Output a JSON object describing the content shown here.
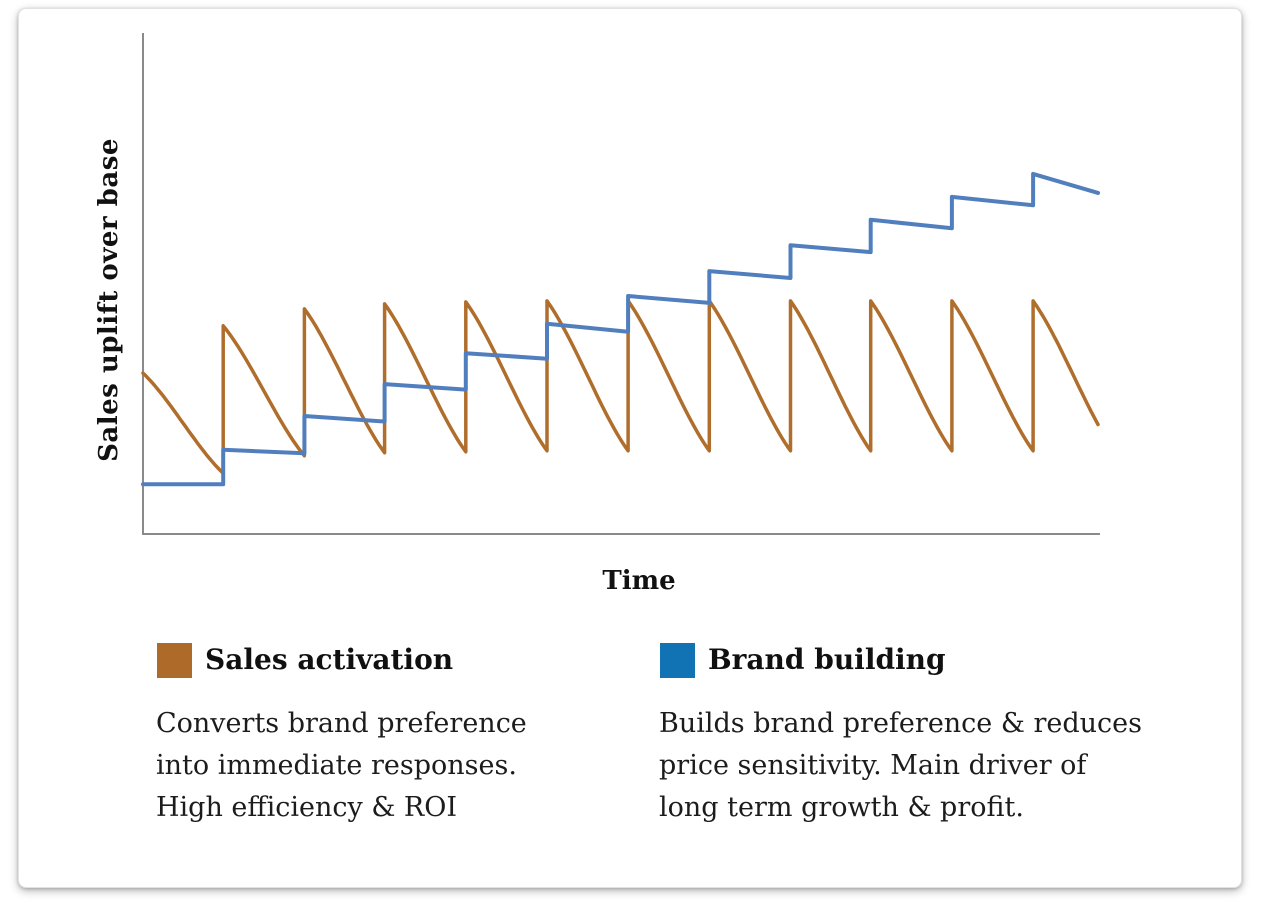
{
  "chart": {
    "axis_color": "#8a8a8a",
    "plot_background": "#ffffff"
  },
  "chart_data": {
    "type": "line",
    "title": "",
    "xlabel": "Time",
    "ylabel": "Sales uplift over base",
    "x_range": [
      0,
      100
    ],
    "y_range": [
      0,
      100
    ],
    "grid": false,
    "axis_tick_labels": "none",
    "legend_position": "below-chart",
    "series": [
      {
        "name": "Sales activation",
        "color": "#B06E2C",
        "pattern": "repeated-burst-sawtooth",
        "start_point": [
          0,
          32.3
        ],
        "burst_times": [
          8.4,
          16.9,
          25.3,
          33.8,
          42.3,
          50.8,
          59.3,
          67.8,
          76.2,
          84.7,
          93.2
        ],
        "burst_peaks": [
          41.8,
          45.2,
          46.2,
          46.6,
          46.8,
          46.8,
          46.8,
          46.8,
          46.8,
          46.8,
          46.8
        ],
        "pre_burst_troughs": [
          12.2,
          15.7,
          16.3,
          16.5,
          16.7,
          16.7,
          16.7,
          16.7,
          16.7,
          16.7,
          16.7
        ],
        "end_time": 100,
        "decay_ease_factor": 0.25
      },
      {
        "name": "Brand building",
        "color": "#517FBE",
        "pattern": "rising-decaying-steps",
        "points": [
          [
            0,
            10
          ],
          [
            8.4,
            10
          ],
          [
            8.4,
            16.9
          ],
          [
            16.9,
            16.2
          ],
          [
            16.9,
            23.7
          ],
          [
            25.3,
            22.6
          ],
          [
            25.3,
            30.1
          ],
          [
            33.8,
            29.0
          ],
          [
            33.8,
            36.3
          ],
          [
            42.3,
            35.2
          ],
          [
            42.3,
            42.2
          ],
          [
            50.8,
            40.6
          ],
          [
            50.8,
            47.8
          ],
          [
            59.3,
            46.4
          ],
          [
            59.3,
            52.8
          ],
          [
            67.8,
            51.4
          ],
          [
            67.8,
            58.0
          ],
          [
            76.2,
            56.6
          ],
          [
            76.2,
            63.1
          ],
          [
            84.7,
            61.4
          ],
          [
            84.7,
            67.7
          ],
          [
            93.2,
            66.0
          ],
          [
            93.2,
            72.3
          ],
          [
            100,
            68.5
          ]
        ]
      }
    ]
  },
  "legend": {
    "items": [
      {
        "label": "Sales activation",
        "color": "#AD6A28",
        "description": "Converts brand preference\ninto immediate responses.\nHigh efficiency & ROI"
      },
      {
        "label": "Brand building",
        "color": "#1173B4",
        "description": "Builds brand preference & reduces\nprice sensitivity. Main driver of\nlong term growth & profit."
      }
    ]
  }
}
